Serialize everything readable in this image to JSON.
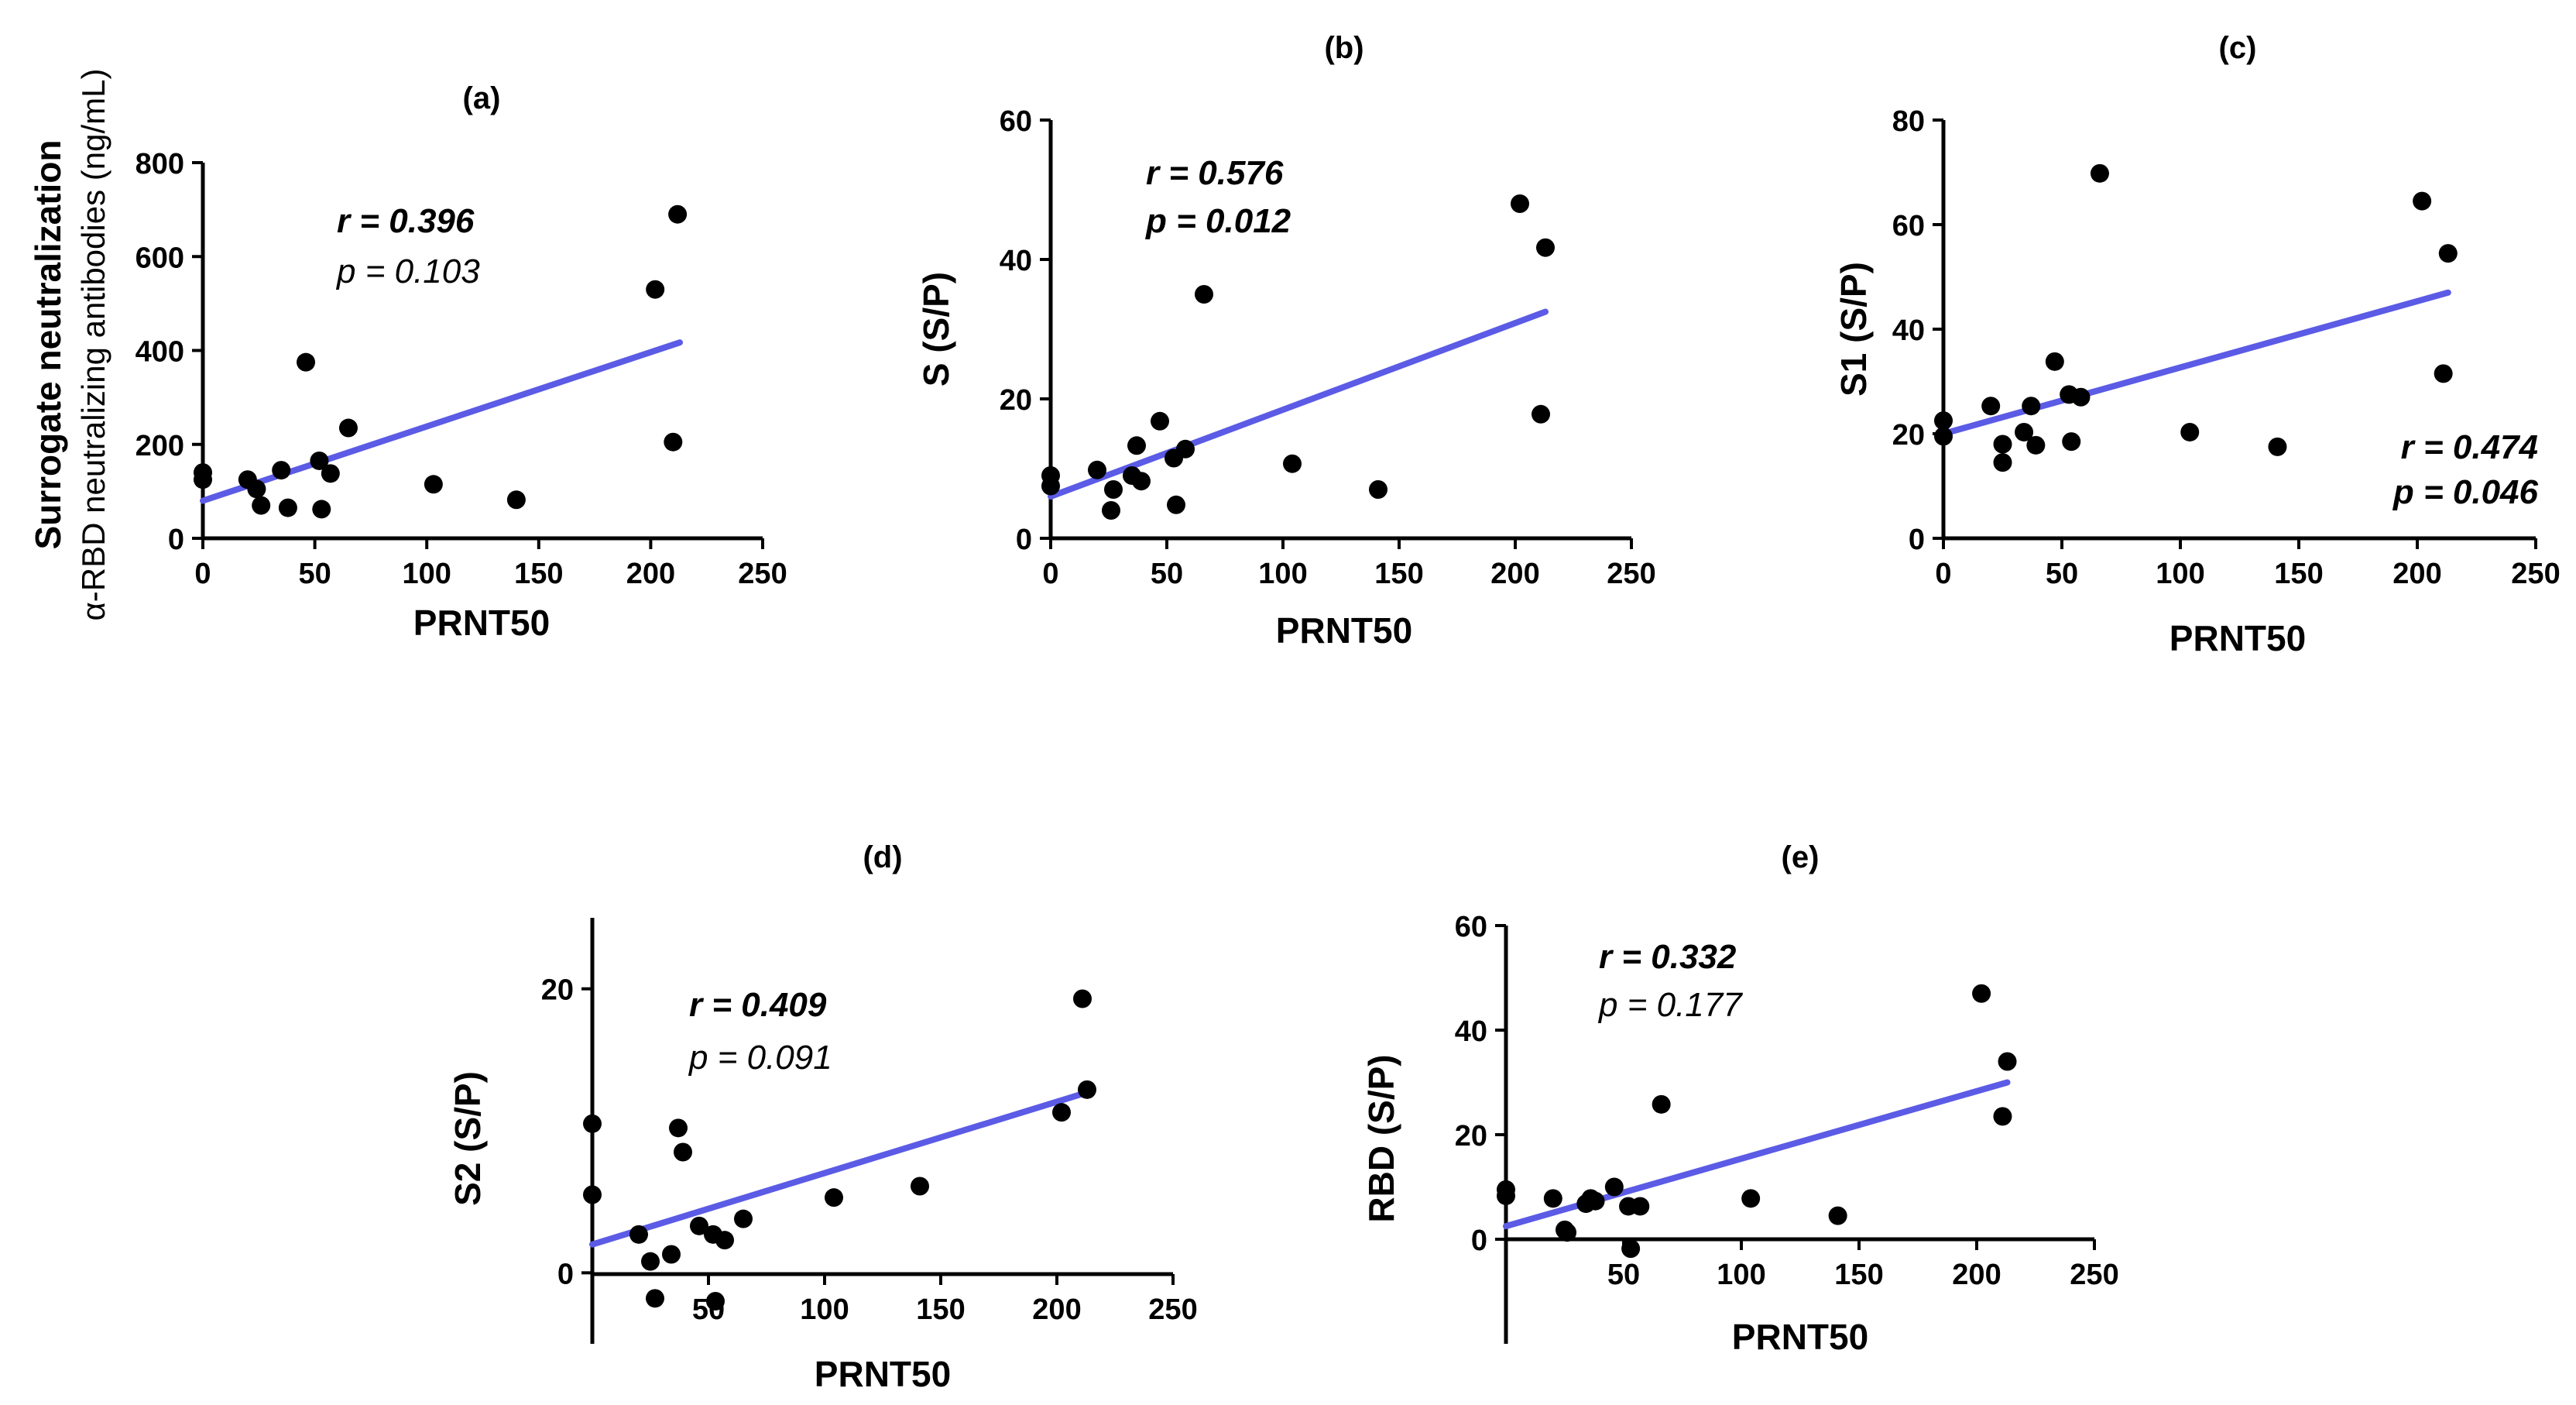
{
  "chart_data": [
    {
      "id": "a",
      "type": "scatter",
      "title": "(a)",
      "xlabel": "PRNT50",
      "ylabel": "Surrogate neutralization",
      "ylabel_sub": "α-RBD neutralizing antibodies (ng/mL)",
      "xlim": [
        0,
        250
      ],
      "ylim": [
        0,
        800
      ],
      "xticks": [
        0,
        50,
        100,
        150,
        200,
        250
      ],
      "yticks": [
        0,
        200,
        400,
        600,
        800
      ],
      "stats": {
        "r": "r = 0.396",
        "p": "p = 0.103",
        "r_bold": true,
        "p_bold": false
      },
      "fit": {
        "x": [
          0,
          213
        ],
        "y": [
          80,
          417
        ],
        "color": "#5b5be6"
      },
      "x": [
        0,
        0,
        20,
        24,
        26,
        35,
        38,
        46,
        52,
        53,
        57,
        65,
        103,
        140,
        202,
        210,
        212
      ],
      "y": [
        140,
        125,
        125,
        105,
        70,
        145,
        65,
        375,
        165,
        62,
        138,
        235,
        115,
        82,
        530,
        205,
        690
      ]
    },
    {
      "id": "b",
      "type": "scatter",
      "title": "(b)",
      "xlabel": "PRNT50",
      "ylabel": "S (S/P)",
      "xlim": [
        0,
        250
      ],
      "ylim": [
        0,
        60
      ],
      "xticks": [
        0,
        50,
        100,
        150,
        200,
        250
      ],
      "yticks": [
        0,
        20,
        40,
        60
      ],
      "stats": {
        "r": "r = 0.576",
        "p": "p = 0.012",
        "r_bold": true,
        "p_bold": true
      },
      "fit": {
        "x": [
          0,
          213
        ],
        "y": [
          6,
          32.5
        ],
        "color": "#5b5be6"
      },
      "x": [
        0,
        0,
        20,
        26,
        27,
        35,
        37,
        39,
        47,
        53,
        54,
        58,
        66,
        104,
        141,
        202,
        211,
        213
      ],
      "y": [
        9,
        7.5,
        9.8,
        4,
        7,
        9,
        13.3,
        8.2,
        16.8,
        11.5,
        4.8,
        12.8,
        35,
        10.7,
        7,
        48,
        17.8,
        41.7
      ]
    },
    {
      "id": "c",
      "type": "scatter",
      "title": "(c)",
      "xlabel": "PRNT50",
      "ylabel": "S1 (S/P)",
      "xlim": [
        0,
        250
      ],
      "ylim": [
        0,
        80
      ],
      "xticks": [
        0,
        50,
        100,
        150,
        200,
        250
      ],
      "yticks": [
        0,
        20,
        40,
        60,
        80
      ],
      "stats": {
        "r": "r = 0.474",
        "p": "p = 0.046",
        "r_bold": true,
        "p_bold": true
      },
      "fit": {
        "x": [
          0,
          213
        ],
        "y": [
          20,
          47
        ],
        "color": "#5b5be6"
      },
      "x": [
        0,
        0,
        20,
        25,
        25,
        34,
        37,
        39,
        47,
        53,
        54,
        58,
        66,
        104,
        141,
        202,
        211,
        213
      ],
      "y": [
        22.5,
        19.5,
        25.3,
        18,
        14.5,
        20.3,
        25.3,
        17.8,
        33.8,
        27.5,
        18.5,
        27,
        69.8,
        20.3,
        17.5,
        64.5,
        31.5,
        54.5
      ]
    },
    {
      "id": "d",
      "type": "scatter",
      "title": "(d)",
      "xlabel": "PRNT50",
      "ylabel": "S2 (S/P)",
      "xlim": [
        0,
        250
      ],
      "ylim": [
        -5,
        25
      ],
      "xticks": [
        50,
        100,
        150,
        200,
        250
      ],
      "yticks": [
        0,
        20
      ],
      "stats": {
        "r": "r = 0.409",
        "p": "p = 0.091",
        "r_bold": true,
        "p_bold": false
      },
      "fit": {
        "x": [
          0,
          213
        ],
        "y": [
          2,
          12.7
        ],
        "color": "#5b5be6"
      },
      "x": [
        0,
        0,
        20,
        25,
        27,
        34,
        37,
        39,
        46,
        52,
        53,
        57,
        65,
        104,
        141,
        202,
        211,
        213
      ],
      "y": [
        10.5,
        5.5,
        2.7,
        0.8,
        -1.8,
        1.3,
        10.2,
        8.5,
        3.3,
        2.7,
        -2.0,
        2.3,
        3.8,
        5.3,
        6.1,
        11.3,
        19.3,
        12.9
      ]
    },
    {
      "id": "e",
      "type": "scatter",
      "title": "(e)",
      "xlabel": "PRNT50",
      "ylabel": "RBD (S/P)",
      "xlim": [
        0,
        250
      ],
      "ylim": [
        -20,
        60
      ],
      "xticks": [
        50,
        100,
        150,
        200,
        250
      ],
      "yticks": [
        0,
        20,
        40,
        60
      ],
      "stats": {
        "r": "r = 0.332",
        "p": "p = 0.177",
        "r_bold": true,
        "p_bold": false
      },
      "fit": {
        "x": [
          0,
          213
        ],
        "y": [
          2.5,
          30
        ],
        "color": "#5b5be6"
      },
      "x": [
        0,
        0,
        20,
        25,
        26,
        34,
        36,
        38,
        46,
        52,
        53,
        57,
        66,
        104,
        141,
        202,
        211,
        213
      ],
      "y": [
        9.5,
        8.3,
        7.8,
        1.8,
        1.3,
        6.8,
        7.8,
        7.3,
        10,
        6.3,
        -1.8,
        6.3,
        25.8,
        7.8,
        4.5,
        47,
        23.5,
        34
      ]
    }
  ]
}
